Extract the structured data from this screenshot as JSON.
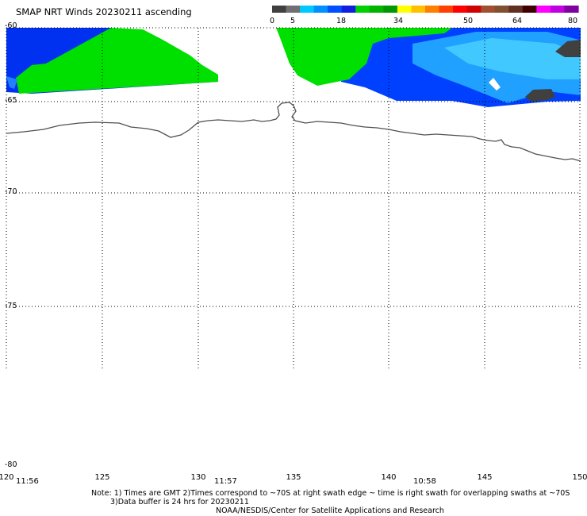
{
  "title": "SMAP NRT Winds 20230211 ascending",
  "colorbar": {
    "labels": [
      "0",
      "5",
      "18",
      "34",
      "50",
      "64",
      "80"
    ],
    "colors": [
      "#404040",
      "#707070",
      "#00c8ff",
      "#0090ff",
      "#0050ff",
      "#1020e0",
      "#00d000",
      "#00b400",
      "#009800",
      "#ffff00",
      "#ffc000",
      "#ff8000",
      "#ff4000",
      "#ff0000",
      "#d00000",
      "#a05030",
      "#805030",
      "#603020",
      "#400000",
      "#ff00ff",
      "#c000e0",
      "#8000a0"
    ]
  },
  "map": {
    "lat_labels": [
      "-60",
      "-65",
      "-70",
      "-75",
      "-80"
    ],
    "lon_labels": [
      "120",
      "125",
      "130",
      "135",
      "140",
      "145",
      "150"
    ],
    "swath_times": [
      "11:56",
      "11:57",
      "10:58"
    ],
    "lat_range": [
      -80,
      -60
    ],
    "lon_range": [
      120,
      150
    ],
    "gridlines": true
  },
  "notes": {
    "line1": "Note: 1) Times are GMT 2)Times correspond to ~70S at right swath edge ~ time is right swath for overlapping swaths at ~70S",
    "line2": "3)Data buffer is 24 hrs for 20230211",
    "line3": "NOAA/NESDIS/Center for Satellite Applications and Research"
  }
}
